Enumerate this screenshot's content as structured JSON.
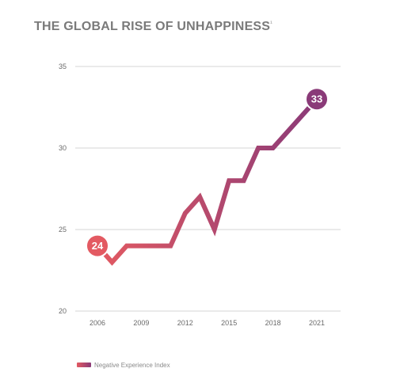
{
  "chart_data": {
    "type": "line",
    "title": "THE GLOBAL RISE OF UNHAPPINESS",
    "title_mark": "¹",
    "x": [
      2006,
      2007,
      2008,
      2009,
      2010,
      2011,
      2012,
      2013,
      2014,
      2015,
      2016,
      2017,
      2018,
      2019,
      2020,
      2021
    ],
    "x_ticks": [
      2006,
      2009,
      2012,
      2015,
      2018,
      2021
    ],
    "x_tick_labels": [
      "2006",
      "2009",
      "2012",
      "2015",
      "2018",
      "2021"
    ],
    "y_ticks": [
      20,
      25,
      30,
      35
    ],
    "y_tick_labels": [
      "20",
      "25",
      "30",
      "35"
    ],
    "ylim": [
      20,
      35
    ],
    "xlim": [
      2006,
      2021
    ],
    "grid": true,
    "series": [
      {
        "name": "Negative Experience Index",
        "values": [
          24,
          23,
          24,
          24,
          24,
          24,
          26,
          27,
          25,
          28,
          28,
          30,
          30,
          31,
          32,
          33
        ],
        "gradient": [
          "#e35a62",
          "#8a3a78"
        ]
      }
    ],
    "annotations": [
      {
        "x": 2006,
        "y": 24,
        "label": "24",
        "color": "#e35a62"
      },
      {
        "x": 2021,
        "y": 33,
        "label": "33",
        "color": "#8a3a78"
      }
    ],
    "legend": {
      "placement": "bottom-left",
      "label": "Negative Experience Index"
    }
  }
}
